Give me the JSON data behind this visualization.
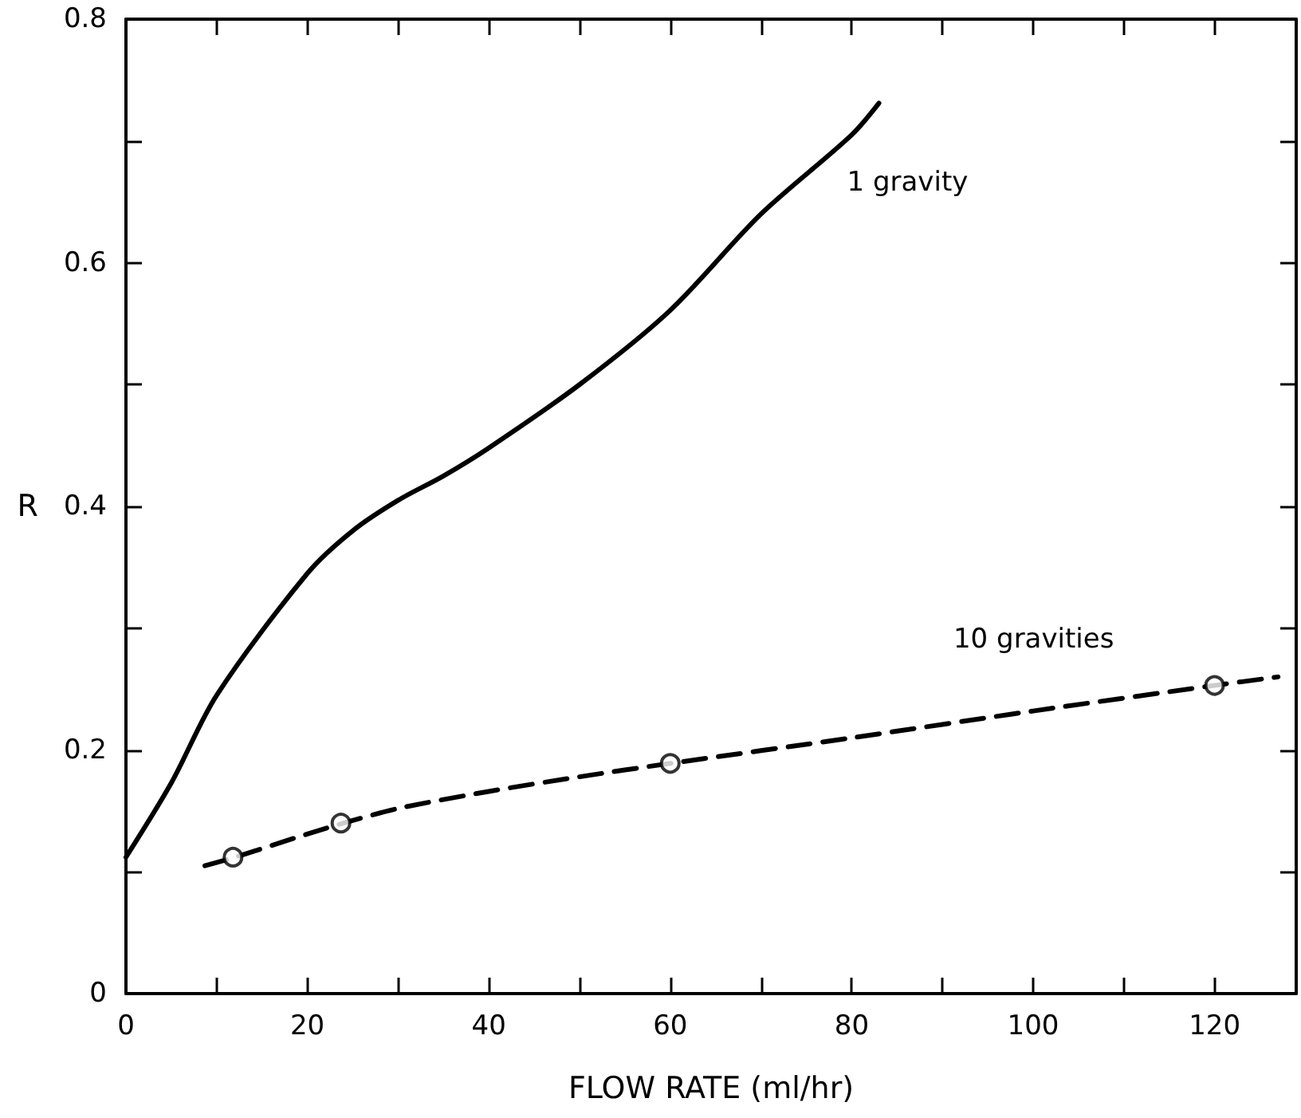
{
  "chart_data": {
    "type": "line",
    "xlabel": "FLOW RATE (ml/hr)",
    "ylabel": "R",
    "xlim": [
      0,
      129
    ],
    "ylim": [
      0,
      0.8
    ],
    "xticks": [
      0,
      {
        "value": 10,
        "label": null
      },
      20,
      {
        "value": 30,
        "label": null
      },
      40,
      {
        "value": 50,
        "label": null
      },
      60,
      {
        "value": 70,
        "label": null
      },
      80,
      {
        "value": 90,
        "label": null
      },
      100,
      {
        "value": 110,
        "label": null
      },
      120
    ],
    "yticks": [
      0,
      {
        "value": 0.1,
        "label": null
      },
      0.2,
      {
        "value": 0.3,
        "label": null
      },
      0.4,
      {
        "value": 0.5,
        "label": null
      },
      0.6,
      {
        "value": 0.7,
        "label": null
      },
      0.8
    ],
    "grid": false,
    "series": [
      {
        "name": "1 gravity",
        "color": "#000000",
        "line_style": "solid",
        "marker": "none",
        "x": [
          0,
          5,
          10,
          20,
          25,
          30,
          35,
          40,
          50,
          60,
          70,
          80,
          83
        ],
        "values": [
          0.112,
          0.173,
          0.245,
          0.345,
          0.38,
          0.405,
          0.425,
          0.448,
          0.5,
          0.561,
          0.64,
          0.705,
          0.731
        ]
      },
      {
        "name": "10 gravities",
        "color": "#000000",
        "line_style": "dashed",
        "marker": "none",
        "x": [
          8.7,
          12,
          20,
          24,
          30,
          40,
          50,
          60,
          80,
          100,
          120,
          127
        ],
        "values": [
          0.105,
          0.112,
          0.131,
          0.14,
          0.152,
          0.166,
          0.178,
          0.189,
          0.21,
          0.232,
          0.253,
          0.26
        ]
      },
      {
        "type": "scatter",
        "color": "#000000",
        "marker": "circle",
        "x": [
          11.8,
          23.7,
          60,
          120
        ],
        "values": [
          0.112,
          0.14,
          0.189,
          0.253
        ]
      }
    ]
  }
}
